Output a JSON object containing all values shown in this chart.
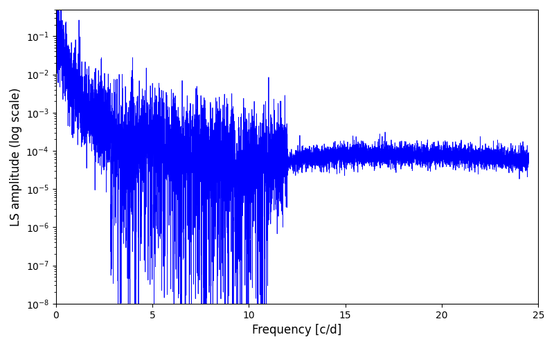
{
  "line_color": "#0000ff",
  "line_width": 0.6,
  "xlabel": "Frequency [c/d]",
  "ylabel": "LS amplitude (log scale)",
  "xlim": [
    0,
    25
  ],
  "ylim": [
    1e-08,
    0.5
  ],
  "xticks": [
    0,
    5,
    10,
    15,
    20,
    25
  ],
  "figsize": [
    8.0,
    5.0
  ],
  "dpi": 100,
  "background_color": "#ffffff",
  "seed": 12345,
  "n_points": 8000,
  "freq_max": 24.5
}
